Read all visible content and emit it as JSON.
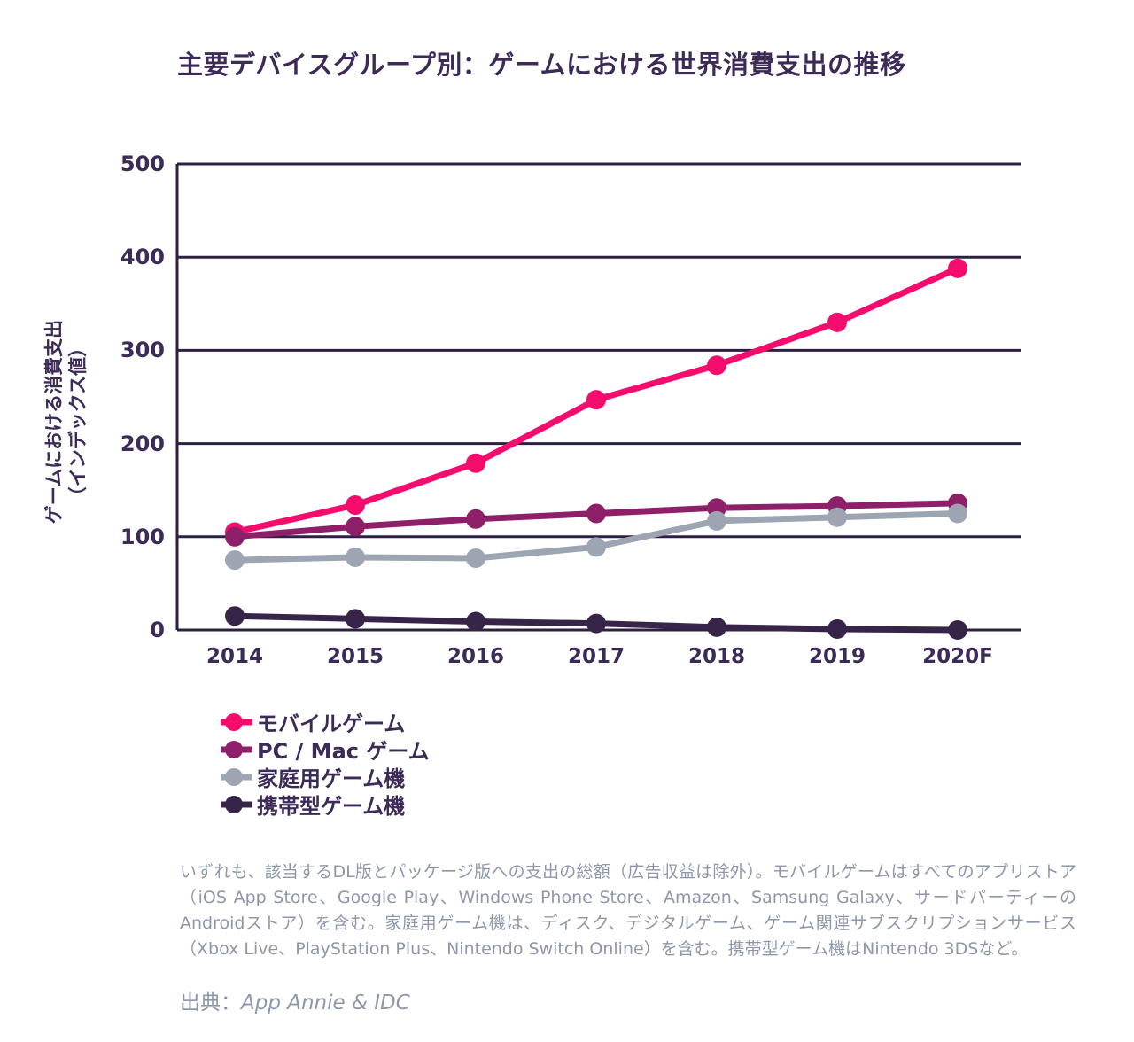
{
  "title": "主要デバイスグループ別：ゲームにおける世界消費支出の推移",
  "chart_data": {
    "type": "line",
    "title": "主要デバイスグループ別：ゲームにおける世界消費支出の推移",
    "categories": [
      "2014",
      "2015",
      "2016",
      "2017",
      "2018",
      "2019",
      "2020F"
    ],
    "series": [
      {
        "id": "mobile-games",
        "name": "モバイルゲーム",
        "color": "#f50d6e",
        "values": [
          105,
          134,
          179,
          247,
          284,
          330,
          388
        ]
      },
      {
        "id": "pc-mac-games",
        "name": "PC / Mac ゲーム",
        "color": "#8e2069",
        "values": [
          100,
          111,
          119,
          125,
          131,
          133,
          136
        ]
      },
      {
        "id": "home-consoles",
        "name": "家庭用ゲーム機",
        "color": "#9ea5b2",
        "values": [
          75,
          78,
          77,
          89,
          117,
          121,
          125
        ]
      },
      {
        "id": "handheld-consoles",
        "name": "携帯型ゲーム機",
        "color": "#372549",
        "values": [
          15,
          12,
          9,
          7,
          3,
          1,
          0
        ]
      }
    ],
    "xlabel": "",
    "ylabel": "ゲームにおける消費支出（インデックス値）",
    "ylabel_lines": [
      "ゲームにおける消費支出",
      "（インデックス値）"
    ],
    "yticks": [
      0,
      100,
      200,
      300,
      400,
      500
    ],
    "ylim": [
      0,
      500
    ],
    "grid": true,
    "legend_position": "below-left"
  },
  "footnote": "いずれも、該当するDL版とパッケージ版への支出の総額（広告収益は除外）。モバイルゲームはすべてのアプリストア（iOS App Store、Google Play、Windows Phone Store、Amazon、Samsung Galaxy、サードパーティーのAndroidストア）を含む。家庭用ゲーム機は、ディスク、デジタルゲーム、ゲーム関連サブスクリプションサービス（Xbox Live、PlayStation Plus、Nintendo Switch Online）を含む。携帯型ゲーム機はNintendo 3DSなど。",
  "source": {
    "prefix": "出典：",
    "name": "App Annie & IDC"
  },
  "colors": {
    "title_text": "#3d2b57",
    "axis_text": "#3d2b57",
    "gridline": "#2e2045",
    "footnote_text": "#8e97a9",
    "background": "#ffffff"
  }
}
